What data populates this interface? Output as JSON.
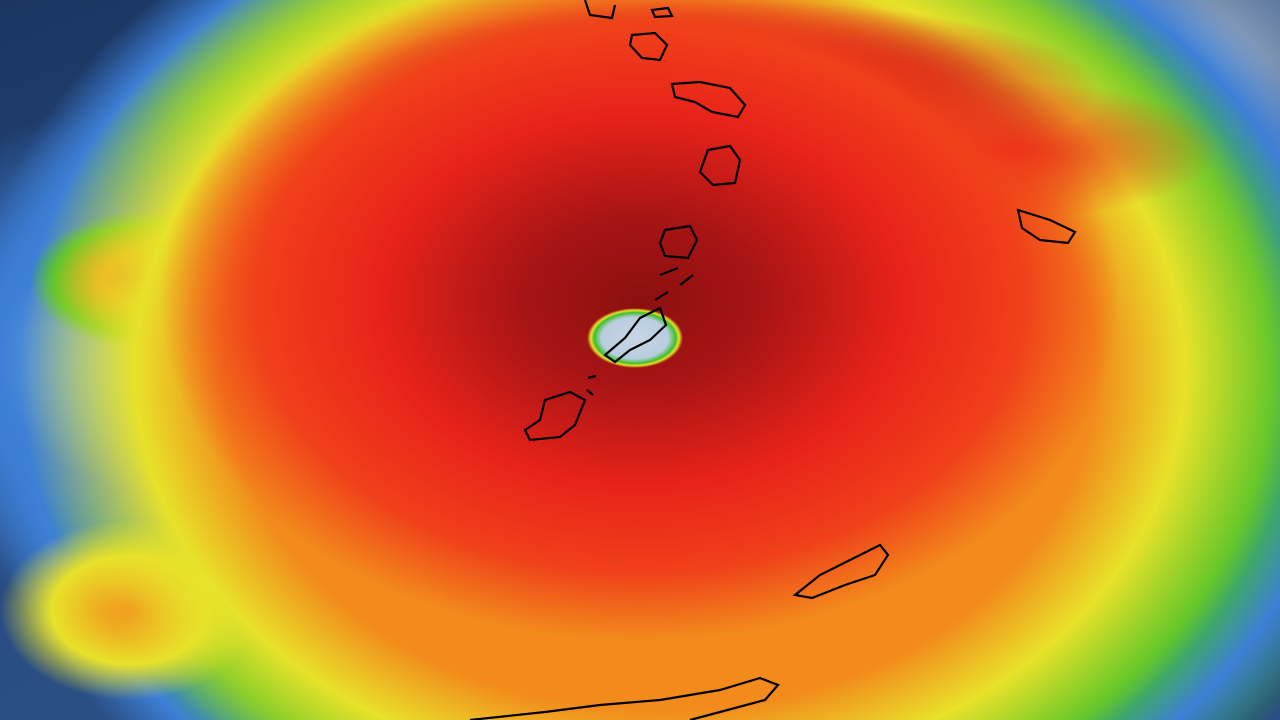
{
  "image": {
    "kind": "enhanced satellite rainfall / cloud-top imagery of a hurricane with island outlines",
    "colors": {
      "ocean": "#1d3a66",
      "cloud_white": "#dfe6ee",
      "light_blue": "#8fc6e8",
      "blue": "#3d7fd6",
      "green": "#3fbf2a",
      "yellow": "#e8e22a",
      "orange": "#f28a1c",
      "red": "#e8231a",
      "dark_red": "#8c1010",
      "eye": "#b9cde0",
      "coastline": "#000000"
    }
  }
}
